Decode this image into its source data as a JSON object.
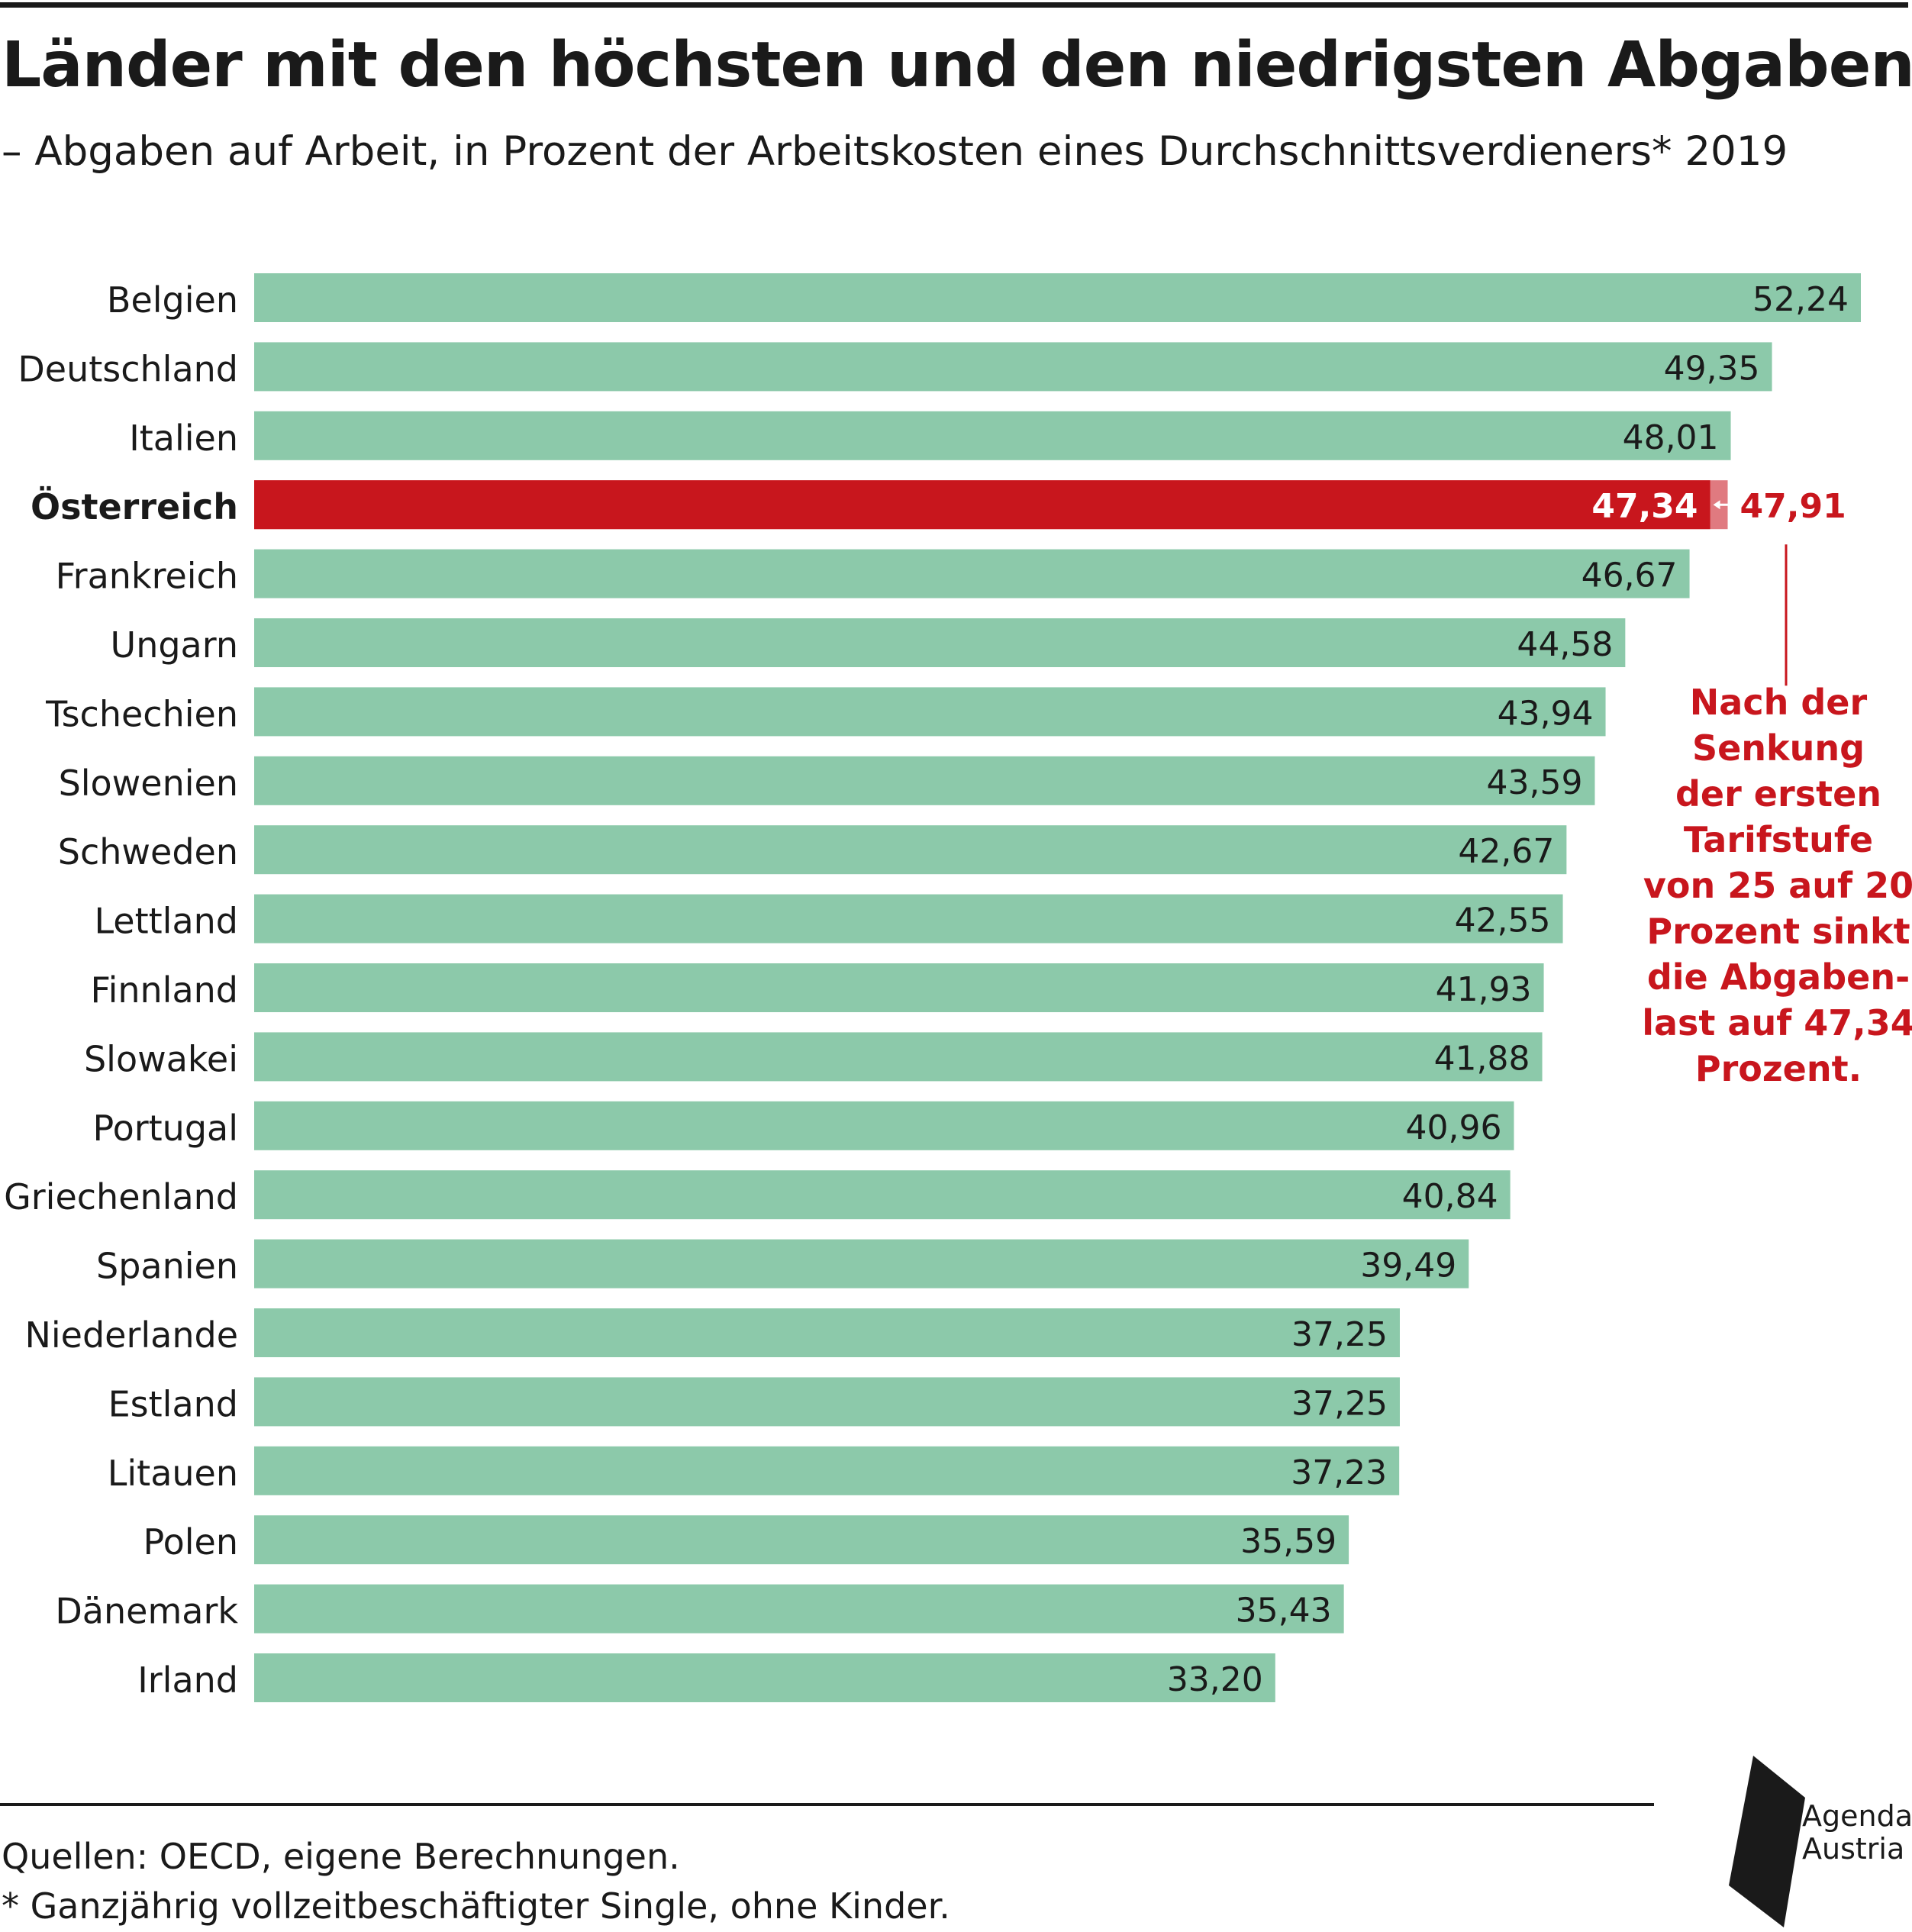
{
  "title": "Länder mit den höchsten und den niedrigsten Abgaben",
  "subtitle": "– Abgaben auf Arbeit, in Prozent der Arbeitskosten eines Durchschnittsverdieners* 2019",
  "source": "Quellen: OECD, eigene Berechnungen.",
  "footnote": "* Ganzjährig vollzeitbeschäftigter Single, ohne Kinder.",
  "annotation_lines": [
    "Nach der",
    "Senkung",
    "der ersten",
    "Tarifstufe",
    "von 25 auf 20",
    "Prozent sinkt",
    "die Abgaben-",
    "last auf 47,34",
    "Prozent."
  ],
  "logo": {
    "line1": "Agenda",
    "line2": "Austria"
  },
  "colors": {
    "bar": "#8cc9aa",
    "highlight": "#c8161d",
    "highlight_light": "#e07a80",
    "text": "#1a1a1a"
  },
  "chart_data": {
    "type": "bar",
    "orientation": "horizontal",
    "categories": [
      "Belgien",
      "Deutschland",
      "Italien",
      "Österreich",
      "Frankreich",
      "Ungarn",
      "Tschechien",
      "Slowenien",
      "Schweden",
      "Lettland",
      "Finnland",
      "Slowakei",
      "Portugal",
      "Griechenland",
      "Spanien",
      "Niederlande",
      "Estland",
      "Litauen",
      "Polen",
      "Dänemark",
      "Irland"
    ],
    "values": [
      52.24,
      49.35,
      48.01,
      47.34,
      46.67,
      44.58,
      43.94,
      43.59,
      42.67,
      42.55,
      41.93,
      41.88,
      40.96,
      40.84,
      39.49,
      37.25,
      37.25,
      37.23,
      35.59,
      35.43,
      33.2
    ],
    "value_labels": [
      "52,24",
      "49,35",
      "48,01",
      "47,34",
      "46,67",
      "44,58",
      "43,94",
      "43,59",
      "42,67",
      "42,55",
      "41,93",
      "41,88",
      "40,96",
      "40,84",
      "39,49",
      "37,25",
      "37,25",
      "37,23",
      "35,59",
      "35,43",
      "33,20"
    ],
    "highlight": {
      "category": "Österreich",
      "value_before": 47.91,
      "value_before_label": "47,91"
    },
    "xlim": [
      0,
      52.24
    ],
    "grid": false,
    "legend": false
  }
}
